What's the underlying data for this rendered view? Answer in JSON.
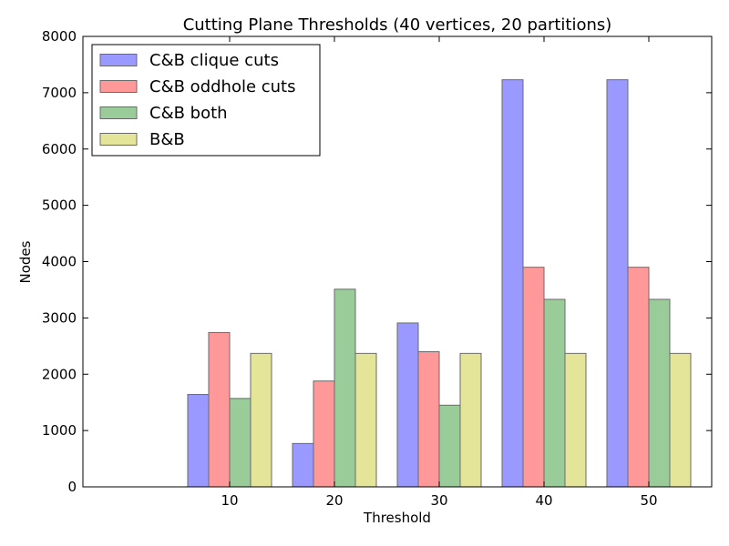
{
  "chart_data": {
    "type": "bar",
    "title": "Cutting Plane Thresholds (40 vertices, 20 partitions)",
    "xlabel": "Threshold",
    "ylabel": "Nodes",
    "categories": [
      "10",
      "20",
      "30",
      "40",
      "50"
    ],
    "ylim": [
      0,
      8000
    ],
    "yticks": [
      "0",
      "1000",
      "2000",
      "3000",
      "4000",
      "5000",
      "6000",
      "7000",
      "8000"
    ],
    "legend_position": "top-left",
    "series": [
      {
        "name": "C&B clique cuts",
        "color": "#9999ff",
        "values": [
          1640,
          770,
          2910,
          7230,
          7230
        ]
      },
      {
        "name": "C&B oddhole cuts",
        "color": "#ff9999",
        "values": [
          2740,
          1880,
          2400,
          3900,
          3900
        ]
      },
      {
        "name": "C&B both",
        "color": "#99cc99",
        "values": [
          1570,
          3510,
          1450,
          3330,
          3330
        ]
      },
      {
        "name": "B&B",
        "color": "#e5e599",
        "values": [
          2370,
          2370,
          2370,
          2370,
          2370
        ]
      }
    ]
  }
}
